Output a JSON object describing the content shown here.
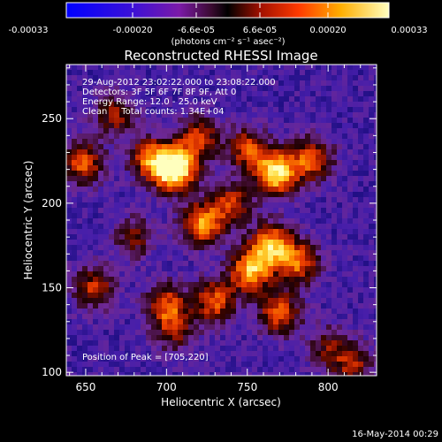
{
  "colorbar": {
    "ticks": [
      "-0.00033",
      "-0.00020",
      "-6.6e-05",
      "6.6e-05",
      "0.00020",
      "0.00033"
    ],
    "units": "(photons cm⁻² s⁻¹ asec⁻²)",
    "min": -0.00033,
    "max": 0.00033
  },
  "chart_data": {
    "type": "heatmap",
    "title": "Reconstructed RHESSI Image",
    "xlabel": "Heliocentric X (arcsec)",
    "ylabel": "Heliocentric Y (arcsec)",
    "xlim": [
      638,
      830
    ],
    "ylim": [
      98,
      282
    ],
    "xticks": [
      650,
      700,
      750,
      800
    ],
    "yticks": [
      100,
      150,
      200,
      250
    ],
    "annotations": [
      "29-Aug-2012 23:02:22.000 to 23:08:22.000",
      "Detectors: 3F 5F 6F 7F 8F 9F, Att 0",
      "Energy Range: 12.0 - 25.0 keV",
      "Clean     Total counts: 1.34E+04"
    ],
    "peak_label": "Position of Peak = [705,220]",
    "peak": [
      705,
      220
    ],
    "sources": [
      {
        "x": 705,
        "y": 220,
        "amp": 1.0
      },
      {
        "x": 690,
        "y": 226,
        "amp": 0.55
      },
      {
        "x": 648,
        "y": 224,
        "amp": 0.55
      },
      {
        "x": 668,
        "y": 252,
        "amp": 0.4
      },
      {
        "x": 720,
        "y": 238,
        "amp": 0.5
      },
      {
        "x": 768,
        "y": 218,
        "amp": 0.85
      },
      {
        "x": 790,
        "y": 226,
        "amp": 0.55
      },
      {
        "x": 750,
        "y": 232,
        "amp": 0.5
      },
      {
        "x": 740,
        "y": 200,
        "amp": 0.45
      },
      {
        "x": 722,
        "y": 188,
        "amp": 0.65
      },
      {
        "x": 765,
        "y": 175,
        "amp": 0.7
      },
      {
        "x": 752,
        "y": 160,
        "amp": 0.7
      },
      {
        "x": 782,
        "y": 165,
        "amp": 0.55
      },
      {
        "x": 730,
        "y": 142,
        "amp": 0.55
      },
      {
        "x": 770,
        "y": 135,
        "amp": 0.55
      },
      {
        "x": 700,
        "y": 140,
        "amp": 0.5
      },
      {
        "x": 705,
        "y": 125,
        "amp": 0.35
      },
      {
        "x": 655,
        "y": 150,
        "amp": 0.45
      },
      {
        "x": 680,
        "y": 180,
        "amp": 0.35
      },
      {
        "x": 815,
        "y": 105,
        "amp": 0.4
      },
      {
        "x": 800,
        "y": 115,
        "amp": 0.3
      }
    ]
  },
  "footer": {
    "timestamp": "16-May-2014 00:29"
  }
}
